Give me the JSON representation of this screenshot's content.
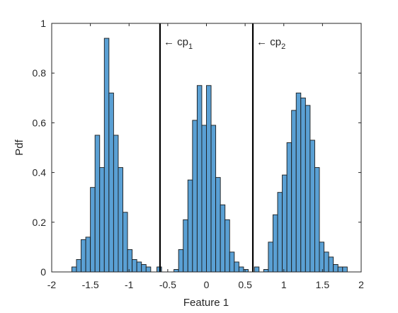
{
  "chart_data": {
    "type": "bar",
    "xlabel": "Feature 1",
    "ylabel": "Pdf",
    "xlim": [
      -2,
      2
    ],
    "ylim": [
      0,
      1
    ],
    "grid": false,
    "bar_color": "#5aa0d4",
    "bar_edge_color": "#1a1a1a",
    "vline_color": "#000000",
    "xticks": [
      {
        "value": -2,
        "label": "-2"
      },
      {
        "value": -1.5,
        "label": "-1.5"
      },
      {
        "value": -1,
        "label": "-1"
      },
      {
        "value": -0.5,
        "label": "-0.5"
      },
      {
        "value": 0,
        "label": "0"
      },
      {
        "value": 0.5,
        "label": "0.5"
      },
      {
        "value": 1,
        "label": "1"
      },
      {
        "value": 1.5,
        "label": "1.5"
      },
      {
        "value": 2,
        "label": "2"
      }
    ],
    "yticks": [
      {
        "value": 0,
        "label": "0"
      },
      {
        "value": 0.2,
        "label": "0.2"
      },
      {
        "value": 0.4,
        "label": "0.4"
      },
      {
        "value": 0.6,
        "label": "0.6"
      },
      {
        "value": 0.8,
        "label": "0.8"
      },
      {
        "value": 1,
        "label": "1"
      }
    ],
    "bins": [
      {
        "x0": -1.74,
        "x1": -1.68,
        "y": 0.02
      },
      {
        "x0": -1.68,
        "x1": -1.62,
        "y": 0.05
      },
      {
        "x0": -1.62,
        "x1": -1.56,
        "y": 0.13
      },
      {
        "x0": -1.56,
        "x1": -1.5,
        "y": 0.14
      },
      {
        "x0": -1.5,
        "x1": -1.44,
        "y": 0.34
      },
      {
        "x0": -1.44,
        "x1": -1.38,
        "y": 0.55
      },
      {
        "x0": -1.38,
        "x1": -1.32,
        "y": 0.42
      },
      {
        "x0": -1.32,
        "x1": -1.26,
        "y": 0.94
      },
      {
        "x0": -1.26,
        "x1": -1.2,
        "y": 0.72
      },
      {
        "x0": -1.2,
        "x1": -1.14,
        "y": 0.55
      },
      {
        "x0": -1.14,
        "x1": -1.08,
        "y": 0.42
      },
      {
        "x0": -1.08,
        "x1": -1.02,
        "y": 0.24
      },
      {
        "x0": -1.02,
        "x1": -0.96,
        "y": 0.09
      },
      {
        "x0": -0.96,
        "x1": -0.9,
        "y": 0.05
      },
      {
        "x0": -0.9,
        "x1": -0.84,
        "y": 0.04
      },
      {
        "x0": -0.84,
        "x1": -0.78,
        "y": 0.03
      },
      {
        "x0": -0.78,
        "x1": -0.72,
        "y": 0.02
      },
      {
        "x0": -0.64,
        "x1": -0.58,
        "y": 0.02
      },
      {
        "x0": -0.42,
        "x1": -0.36,
        "y": 0.01
      },
      {
        "x0": -0.36,
        "x1": -0.3,
        "y": 0.09
      },
      {
        "x0": -0.3,
        "x1": -0.24,
        "y": 0.21
      },
      {
        "x0": -0.24,
        "x1": -0.18,
        "y": 0.37
      },
      {
        "x0": -0.18,
        "x1": -0.12,
        "y": 0.61
      },
      {
        "x0": -0.12,
        "x1": -0.06,
        "y": 0.75
      },
      {
        "x0": -0.06,
        "x1": 0.0,
        "y": 0.59
      },
      {
        "x0": 0.0,
        "x1": 0.06,
        "y": 0.75
      },
      {
        "x0": 0.06,
        "x1": 0.12,
        "y": 0.59
      },
      {
        "x0": 0.12,
        "x1": 0.18,
        "y": 0.38
      },
      {
        "x0": 0.18,
        "x1": 0.24,
        "y": 0.27
      },
      {
        "x0": 0.24,
        "x1": 0.3,
        "y": 0.21
      },
      {
        "x0": 0.3,
        "x1": 0.36,
        "y": 0.08
      },
      {
        "x0": 0.36,
        "x1": 0.42,
        "y": 0.04
      },
      {
        "x0": 0.42,
        "x1": 0.48,
        "y": 0.02
      },
      {
        "x0": 0.48,
        "x1": 0.54,
        "y": 0.01
      },
      {
        "x0": 0.62,
        "x1": 0.68,
        "y": 0.02
      },
      {
        "x0": 0.74,
        "x1": 0.8,
        "y": 0.01
      },
      {
        "x0": 0.8,
        "x1": 0.86,
        "y": 0.12
      },
      {
        "x0": 0.86,
        "x1": 0.92,
        "y": 0.23
      },
      {
        "x0": 0.92,
        "x1": 0.98,
        "y": 0.32
      },
      {
        "x0": 0.98,
        "x1": 1.04,
        "y": 0.39
      },
      {
        "x0": 1.04,
        "x1": 1.1,
        "y": 0.52
      },
      {
        "x0": 1.1,
        "x1": 1.16,
        "y": 0.65
      },
      {
        "x0": 1.16,
        "x1": 1.22,
        "y": 0.72
      },
      {
        "x0": 1.22,
        "x1": 1.28,
        "y": 0.7
      },
      {
        "x0": 1.28,
        "x1": 1.34,
        "y": 0.67
      },
      {
        "x0": 1.34,
        "x1": 1.4,
        "y": 0.53
      },
      {
        "x0": 1.4,
        "x1": 1.46,
        "y": 0.42
      },
      {
        "x0": 1.46,
        "x1": 1.52,
        "y": 0.12
      },
      {
        "x0": 1.52,
        "x1": 1.58,
        "y": 0.08
      },
      {
        "x0": 1.58,
        "x1": 1.64,
        "y": 0.06
      },
      {
        "x0": 1.64,
        "x1": 1.7,
        "y": 0.03
      },
      {
        "x0": 1.7,
        "x1": 1.76,
        "y": 0.02
      },
      {
        "x0": 1.76,
        "x1": 1.82,
        "y": 0.02
      }
    ],
    "vlines": [
      {
        "x": -0.6,
        "label": "cp",
        "subscript": "1",
        "arrow": "←"
      },
      {
        "x": 0.6,
        "label": "cp",
        "subscript": "2",
        "arrow": "←"
      }
    ]
  }
}
